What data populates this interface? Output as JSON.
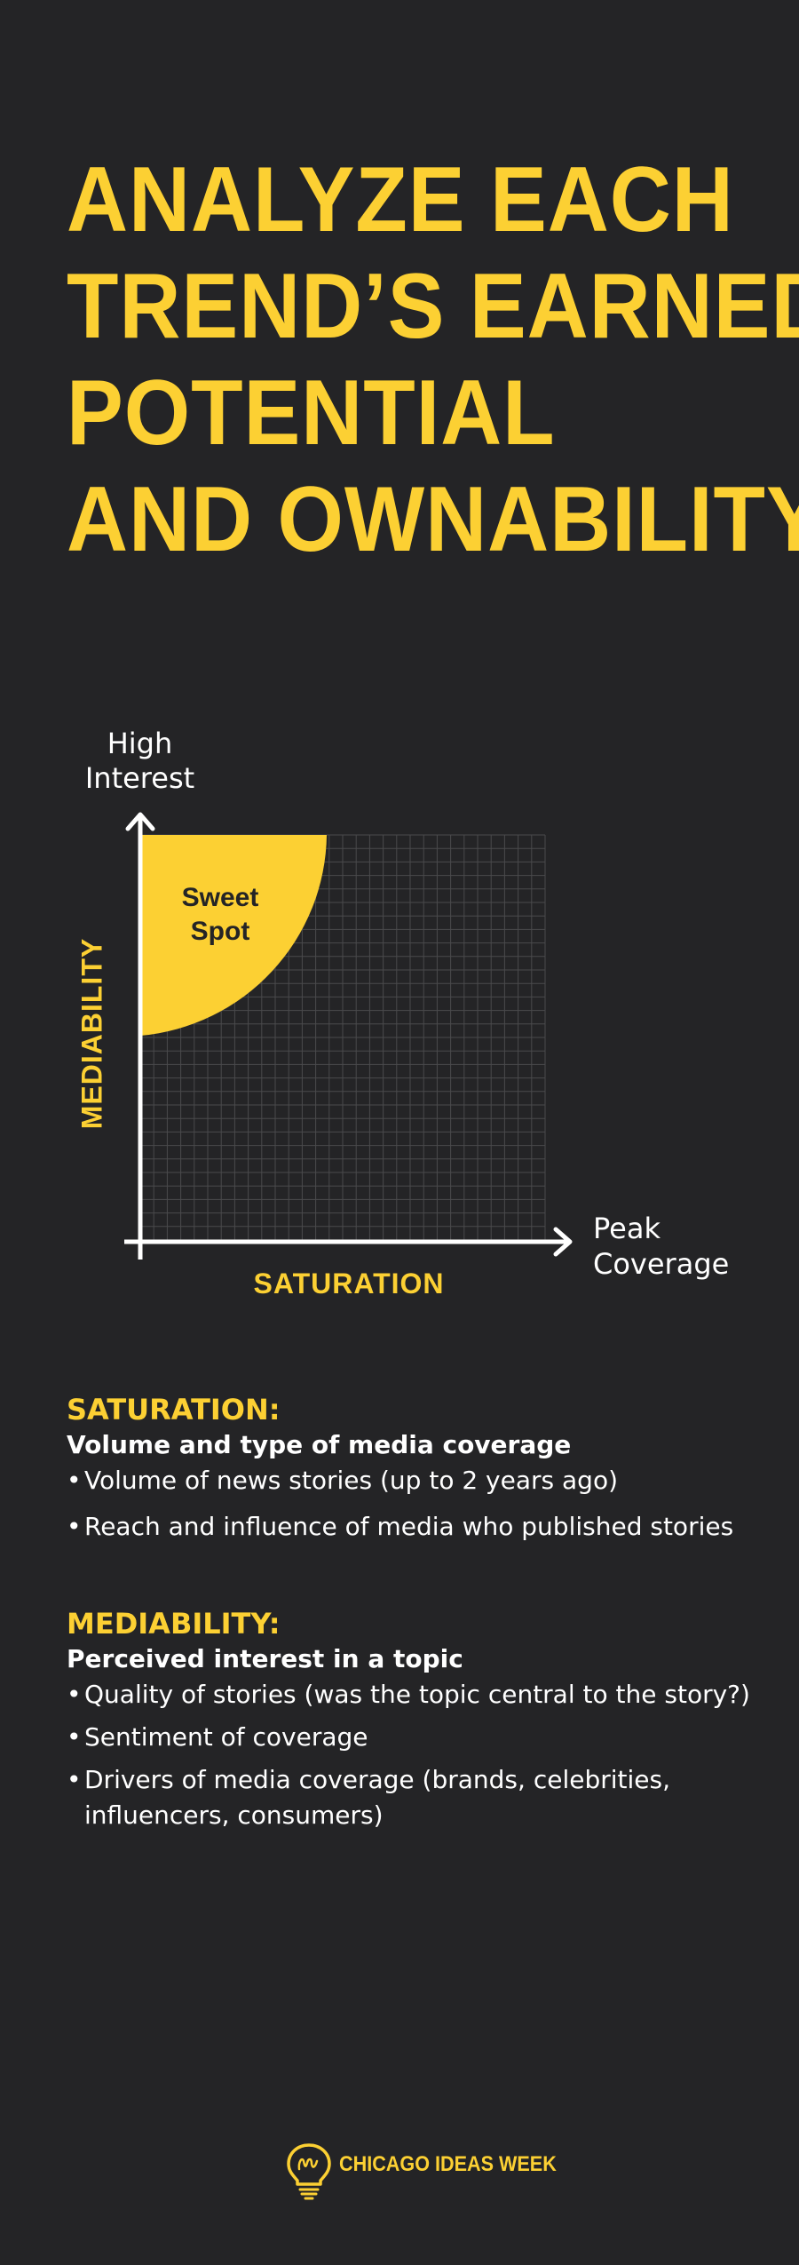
{
  "title": {
    "lines": [
      "ANALYZE EACH",
      "TREND’S EARNED",
      "POTENTIAL",
      "AND OWNABILITY"
    ]
  },
  "diagram": {
    "y_axis_end_label": [
      "High",
      "Interest"
    ],
    "x_axis_end_label": [
      "Peak",
      "Coverage"
    ],
    "x_axis_title": "SATURATION",
    "y_axis_title": "MEDIABILITY",
    "highlight_region_label": [
      "Sweet",
      "Spot"
    ],
    "colors": {
      "accent": "#FCD033",
      "background": "#242426",
      "axis": "#FFFFFF",
      "grid": "#4A4A4C"
    }
  },
  "saturation": {
    "heading": "SATURATION:",
    "subheading": "Volume and type of media coverage",
    "bullets": [
      "Volume of news stories (up to 2 years ago)",
      "Reach and influence of media who published stories"
    ]
  },
  "mediability": {
    "heading": "MEDIABILITY:",
    "subheading": "Perceived interest in a topic",
    "bullets": [
      "Quality of stories (was the topic central to the story?)",
      "Sentiment of coverage",
      "Drivers of media coverage (brands, celebrities, influencers, consumers)"
    ]
  },
  "footer": {
    "brand": "CHICAGO IDEAS WEEK",
    "logo_icon": "lightbulb-icon"
  }
}
